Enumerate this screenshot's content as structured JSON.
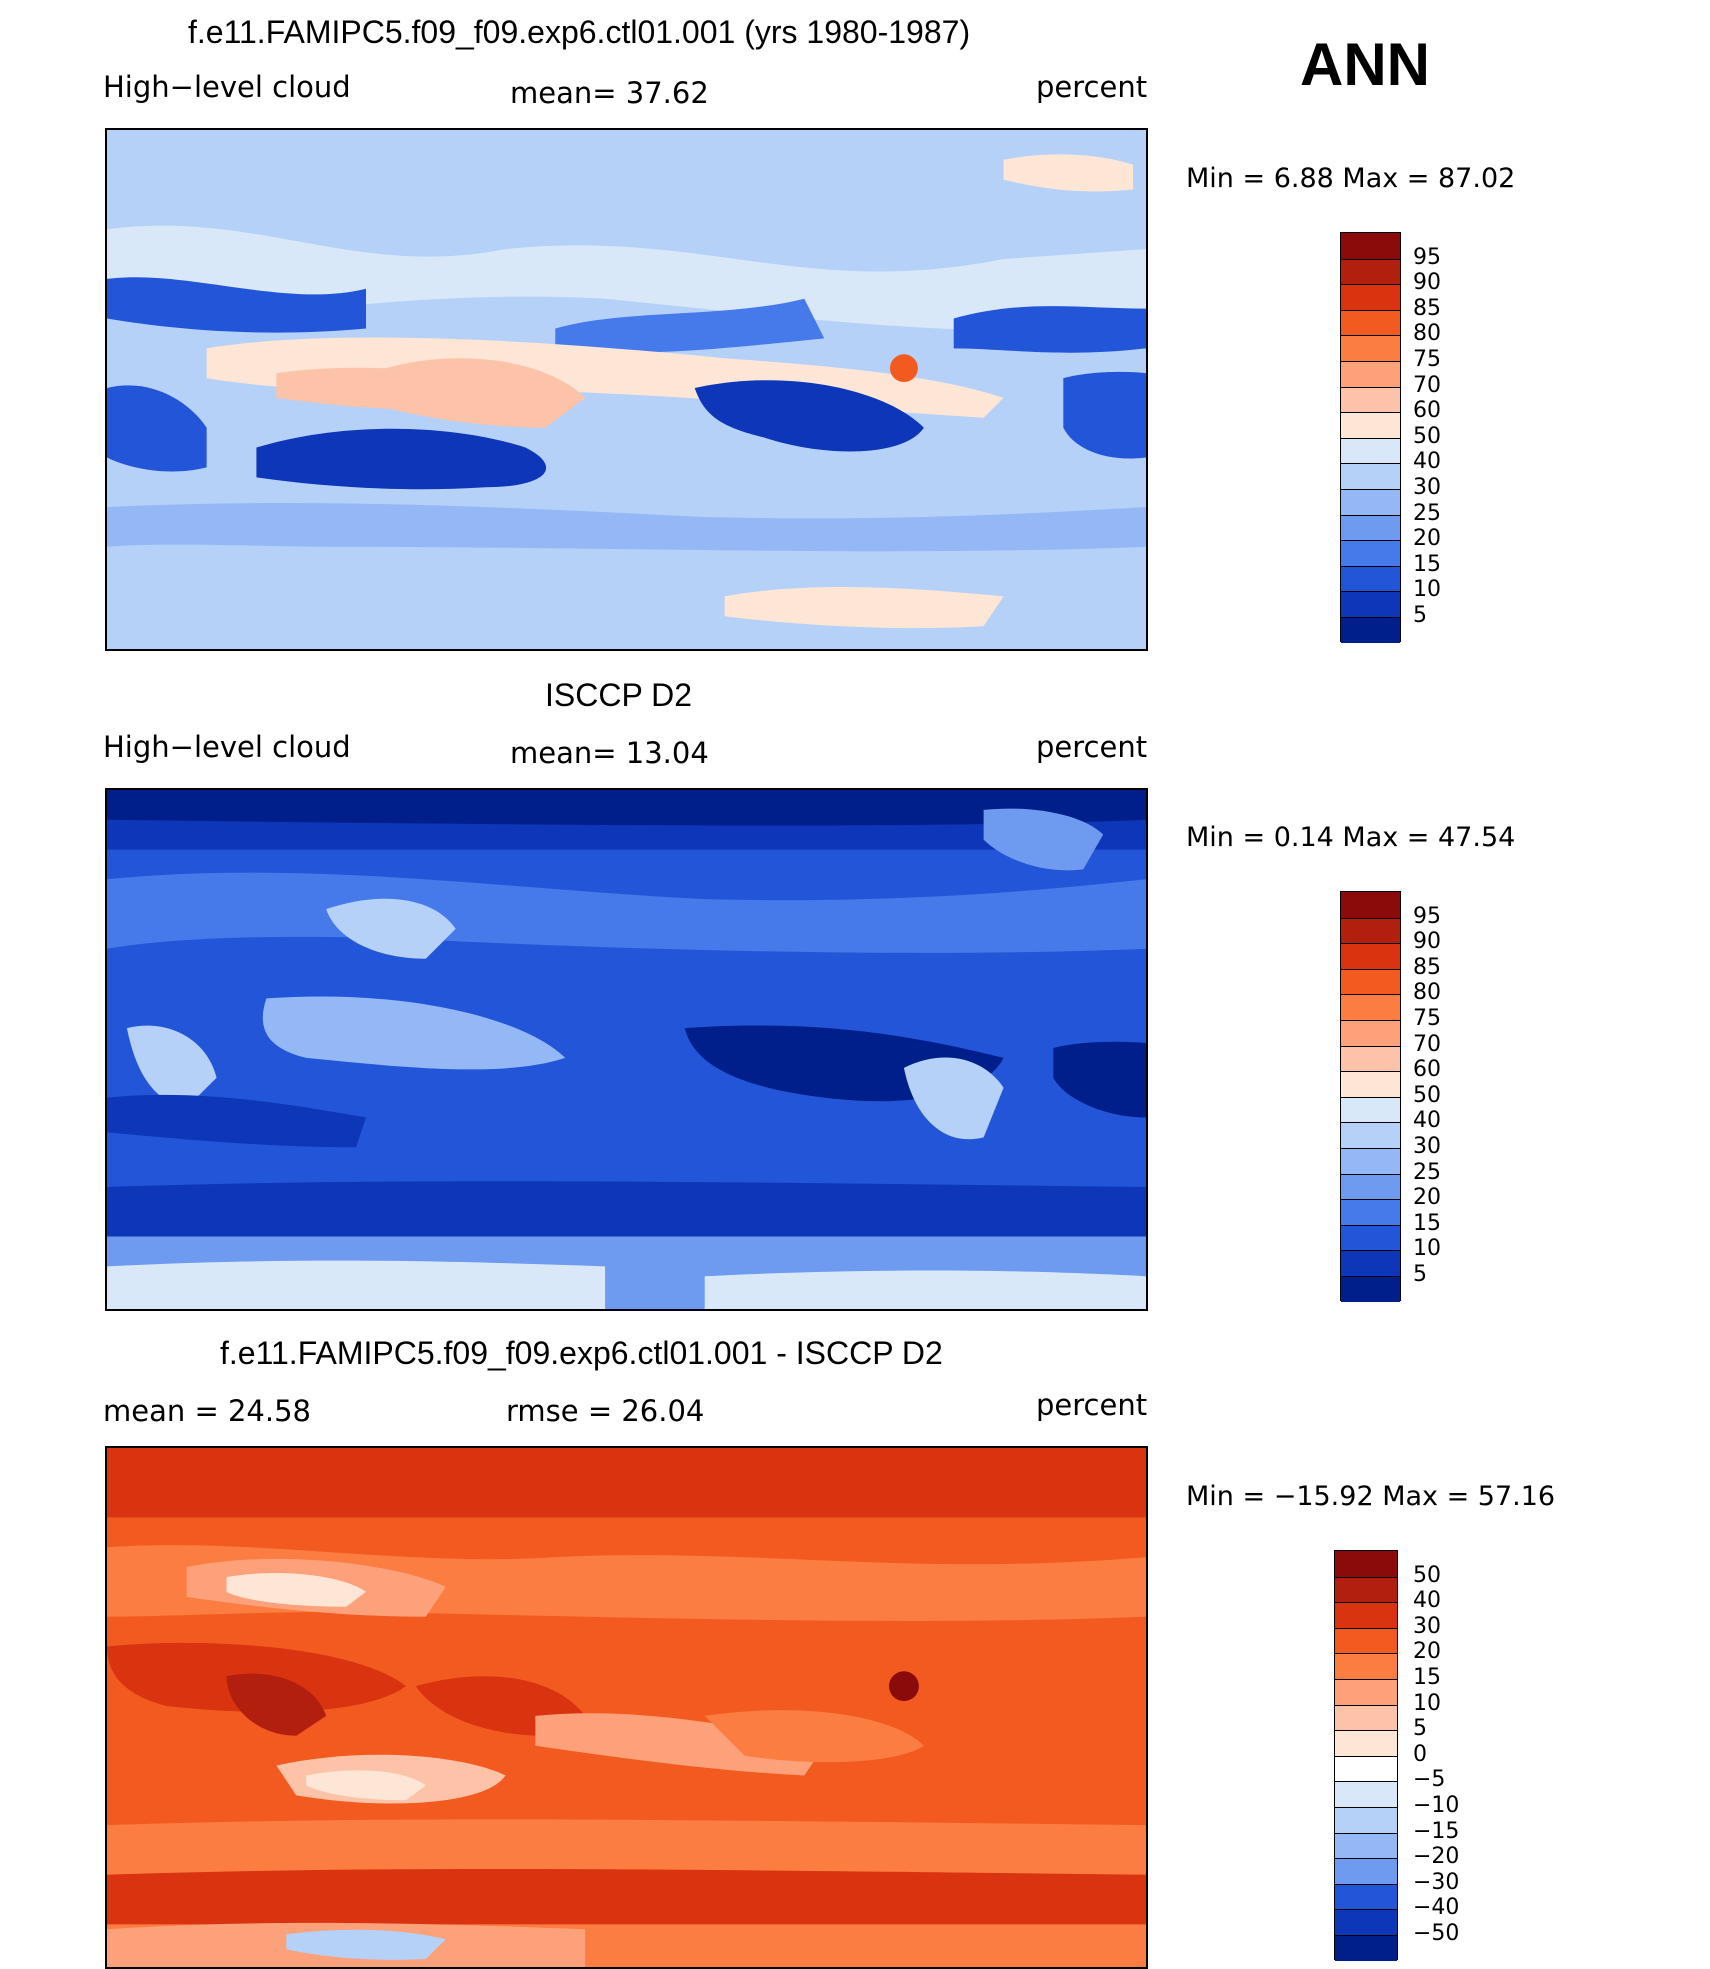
{
  "header": {
    "season": "ANN"
  },
  "panels": [
    {
      "id": "model",
      "title": "f.e11.FAMIPC5.f09_f09.exp6.ctl01.001 (yrs 1980-1987)",
      "left_label": "High−level cloud",
      "center_label": "mean=   37.62",
      "right_label": "percent",
      "minmax": "Min =    6.88 Max =   87.02",
      "colorbar_labels": [
        "95",
        "90",
        "85",
        "80",
        "75",
        "70",
        "60",
        "50",
        "40",
        "30",
        "25",
        "20",
        "15",
        "10",
        "5"
      ],
      "colorbar_colors": [
        "#8b0a0a",
        "#b31f0e",
        "#d9330f",
        "#f25a1f",
        "#fb7d42",
        "#fca17a",
        "#fcc3a8",
        "#fde6d6",
        "#d8e8f8",
        "#b5d1f7",
        "#93b8f5",
        "#6e9bf0",
        "#4679ea",
        "#2355d8",
        "#0d36b8",
        "#001f8a"
      ]
    },
    {
      "id": "obs",
      "title": "ISCCP D2",
      "left_label": "High−level cloud",
      "center_label": "mean=   13.04",
      "right_label": "percent",
      "minmax": "Min =    0.14 Max =   47.54",
      "colorbar_labels": [
        "95",
        "90",
        "85",
        "80",
        "75",
        "70",
        "60",
        "50",
        "40",
        "30",
        "25",
        "20",
        "15",
        "10",
        "5"
      ],
      "colorbar_colors": [
        "#8b0a0a",
        "#b31f0e",
        "#d9330f",
        "#f25a1f",
        "#fb7d42",
        "#fca17a",
        "#fcc3a8",
        "#fde6d6",
        "#d8e8f8",
        "#b5d1f7",
        "#93b8f5",
        "#6e9bf0",
        "#4679ea",
        "#2355d8",
        "#0d36b8",
        "#001f8a"
      ]
    },
    {
      "id": "diff",
      "title": "f.e11.FAMIPC5.f09_f09.exp6.ctl01.001 - ISCCP D2",
      "left_label": "mean =   24.58",
      "center_label": "rmse =   26.04",
      "right_label": "percent",
      "minmax": "Min = −15.92 Max =   57.16",
      "colorbar_labels": [
        "50",
        "40",
        "30",
        "20",
        "15",
        "10",
        "5",
        "0",
        "−5",
        "−10",
        "−15",
        "−20",
        "−30",
        "−40",
        "−50"
      ],
      "colorbar_colors": [
        "#8b0a0a",
        "#b31f0e",
        "#d9330f",
        "#f25a1f",
        "#fb7d42",
        "#fca17a",
        "#fcc3a8",
        "#fde6d6",
        "#ffffff",
        "#d8e8f8",
        "#b5d1f7",
        "#93b8f5",
        "#6e9bf0",
        "#2355d8",
        "#0d36b8",
        "#001f8a"
      ]
    }
  ]
}
